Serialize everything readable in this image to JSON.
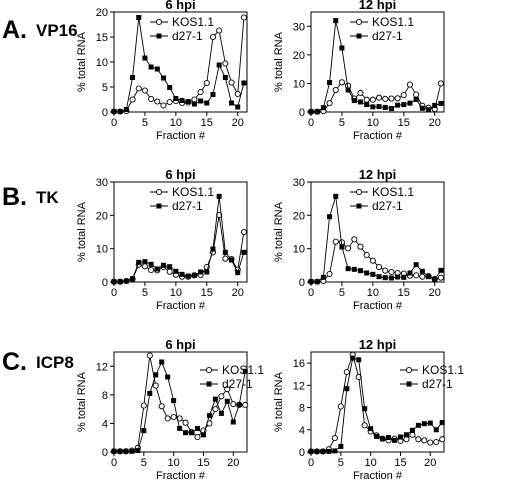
{
  "rows": [
    {
      "letter": "A.",
      "gene": "VP16"
    },
    {
      "letter": "B.",
      "gene": "TK"
    },
    {
      "letter": "C.",
      "gene": "ICP8"
    }
  ],
  "legend": {
    "series_a": "KOS1.1",
    "series_b": "d27-1"
  },
  "colors": {
    "axis": "#000000",
    "open_marker_fill": "#ffffff",
    "filled_marker_fill": "#000000"
  },
  "chart_data": [
    {
      "type": "line",
      "row": "A",
      "title": "6 hpi",
      "xlabel": "Fraction #",
      "ylabel": "% total RNA",
      "xlim": [
        0,
        21.5
      ],
      "ylim": [
        0,
        20
      ],
      "xticks": [
        0,
        5,
        10,
        15,
        20
      ],
      "yticks": [
        0,
        5,
        10,
        15,
        20
      ],
      "legend_position": "top-center",
      "x": [
        0,
        1,
        2,
        3,
        4,
        5,
        6,
        7,
        8,
        9,
        10,
        11,
        12,
        13,
        14,
        15,
        16,
        17,
        18,
        19,
        20,
        21
      ],
      "series": [
        {
          "name": "KOS1.1",
          "marker": "open-circle",
          "values": [
            0.1,
            0.1,
            0.2,
            2.5,
            4.7,
            4.3,
            2.6,
            2.1,
            1.3,
            2.0,
            2.2,
            1.8,
            1.9,
            2.5,
            4.0,
            5.8,
            15.0,
            16.3,
            9.7,
            5.9,
            3.6,
            18.9
          ]
        },
        {
          "name": "d27-1",
          "marker": "filled-square",
          "values": [
            0.1,
            0.1,
            0.5,
            6.9,
            18.9,
            10.8,
            9.0,
            8.6,
            6.8,
            4.9,
            2.7,
            2.3,
            2.1,
            1.6,
            2.2,
            1.8,
            3.5,
            9.4,
            6.9,
            1.8,
            1.0,
            5.8
          ]
        }
      ]
    },
    {
      "type": "line",
      "row": "A",
      "title": "12 hpi",
      "xlabel": "Fraction #",
      "ylabel": "",
      "xlim": [
        0,
        21.5
      ],
      "ylim": [
        0,
        35
      ],
      "xticks": [
        0,
        5,
        10,
        15,
        20
      ],
      "yticks": [
        0,
        10,
        20,
        30
      ],
      "legend_position": "top-center",
      "x": [
        0,
        1,
        2,
        3,
        4,
        5,
        6,
        7,
        8,
        9,
        10,
        11,
        12,
        13,
        14,
        15,
        16,
        17,
        18,
        19,
        20,
        21
      ],
      "series": [
        {
          "name": "KOS1.1",
          "marker": "open-circle",
          "values": [
            0.1,
            0.1,
            0.3,
            3.1,
            7.7,
            10.4,
            9.2,
            4.7,
            6.7,
            4.3,
            4.3,
            5.0,
            4.6,
            4.7,
            4.8,
            5.9,
            9.6,
            6.1,
            2.2,
            1.5,
            1.0,
            10.0
          ]
        },
        {
          "name": "d27-1",
          "marker": "filled-square",
          "values": [
            0.1,
            0.1,
            1.5,
            10.3,
            32.0,
            22.4,
            7.7,
            4.0,
            3.5,
            2.6,
            1.8,
            1.9,
            1.6,
            1.2,
            2.4,
            2.6,
            3.1,
            4.4,
            1.3,
            0.8,
            2.3,
            3.0
          ]
        }
      ]
    },
    {
      "type": "line",
      "row": "B",
      "title": "6 hpi",
      "xlabel": "Fraction #",
      "ylabel": "% total RNA",
      "xlim": [
        0,
        21.5
      ],
      "ylim": [
        0,
        30
      ],
      "xticks": [
        0,
        5,
        10,
        15,
        20
      ],
      "yticks": [
        0,
        10,
        20,
        30
      ],
      "legend_position": "top-center",
      "x": [
        0,
        1,
        2,
        3,
        4,
        5,
        6,
        7,
        8,
        9,
        10,
        11,
        12,
        13,
        14,
        15,
        16,
        17,
        18,
        19,
        20,
        21
      ],
      "series": [
        {
          "name": "KOS1.1",
          "marker": "open-circle",
          "values": [
            0.1,
            0.1,
            0.3,
            0.9,
            5.2,
            4.7,
            3.6,
            3.5,
            4.5,
            3.1,
            2.2,
            1.6,
            1.6,
            2.0,
            2.1,
            4.5,
            8.9,
            20.1,
            7.0,
            6.9,
            3.7,
            15.0
          ]
        },
        {
          "name": "d27-1",
          "marker": "filled-square",
          "values": [
            0.1,
            0.1,
            0.3,
            1.0,
            5.9,
            6.1,
            5.3,
            3.9,
            5.0,
            4.6,
            3.2,
            2.3,
            1.8,
            2.0,
            3.0,
            3.0,
            9.9,
            25.7,
            8.9,
            6.6,
            2.8,
            8.9
          ]
        }
      ]
    },
    {
      "type": "line",
      "row": "B",
      "title": "12 hpi",
      "xlabel": "Fraction #",
      "ylabel": "",
      "xlim": [
        0,
        21.5
      ],
      "ylim": [
        0,
        30
      ],
      "xticks": [
        0,
        5,
        10,
        15,
        20
      ],
      "yticks": [
        0,
        10,
        20,
        30
      ],
      "legend_position": "top-center",
      "x": [
        0,
        1,
        2,
        3,
        4,
        5,
        6,
        7,
        8,
        9,
        10,
        11,
        12,
        13,
        14,
        15,
        16,
        17,
        18,
        19,
        20,
        21
      ],
      "series": [
        {
          "name": "KOS1.1",
          "marker": "open-circle",
          "values": [
            0.1,
            0.1,
            0.3,
            2.4,
            12.1,
            11.9,
            10.1,
            12.8,
            10.6,
            8.1,
            6.4,
            4.5,
            3.4,
            3.0,
            2.7,
            2.5,
            1.9,
            2.0,
            1.6,
            1.8,
            0.9,
            1.3
          ]
        },
        {
          "name": "d27-1",
          "marker": "filled-square",
          "values": [
            0.1,
            0.1,
            1.4,
            19.6,
            25.7,
            10.5,
            4.0,
            3.8,
            3.4,
            2.7,
            2.3,
            1.6,
            1.3,
            1.2,
            1.5,
            1.4,
            2.7,
            5.2,
            3.2,
            1.6,
            0.8,
            3.5
          ]
        }
      ]
    },
    {
      "type": "line",
      "row": "C",
      "title": "6 hpi",
      "xlabel": "Fraction #",
      "ylabel": "% total RNA",
      "xlim": [
        0,
        22.3
      ],
      "ylim": [
        0,
        14
      ],
      "xticks": [
        0,
        5,
        10,
        15,
        20
      ],
      "yticks": [
        0,
        4,
        8,
        12
      ],
      "legend_position": "top-right",
      "x": [
        0,
        1,
        2,
        3,
        4,
        5,
        6,
        7,
        8,
        9,
        10,
        11,
        12,
        13,
        14,
        15,
        16,
        17,
        18,
        19,
        20,
        21,
        22
      ],
      "series": [
        {
          "name": "KOS1.1",
          "marker": "open-circle",
          "values": [
            0.1,
            0.1,
            0.1,
            0.2,
            0.6,
            6.5,
            13.5,
            9.3,
            6.4,
            4.7,
            4.9,
            4.7,
            4.1,
            2.8,
            2.1,
            3.0,
            4.0,
            6.0,
            7.8,
            8.8,
            6.7,
            6.6,
            6.6
          ]
        },
        {
          "name": "d27-1",
          "marker": "filled-square",
          "values": [
            0.1,
            0.1,
            0.1,
            0.1,
            0.2,
            3.0,
            8.2,
            10.8,
            12.6,
            10.5,
            7.2,
            3.3,
            2.7,
            2.7,
            3.3,
            2.4,
            5.1,
            7.4,
            5.4,
            7.1,
            4.2,
            6.6,
            11.3
          ]
        }
      ]
    },
    {
      "type": "line",
      "row": "C",
      "title": "12 hpi",
      "xlabel": "Fraction #",
      "ylabel": "",
      "xlim": [
        0,
        22.3
      ],
      "ylim": [
        0,
        18
      ],
      "xticks": [
        0,
        5,
        10,
        15,
        20
      ],
      "yticks": [
        0,
        4,
        8,
        12,
        16
      ],
      "legend_position": "top-right",
      "x": [
        0,
        1,
        2,
        3,
        4,
        5,
        6,
        7,
        8,
        9,
        10,
        11,
        12,
        13,
        14,
        15,
        16,
        17,
        18,
        19,
        20,
        21,
        22
      ],
      "series": [
        {
          "name": "KOS1.1",
          "marker": "open-circle",
          "values": [
            0.1,
            0.1,
            0.1,
            0.5,
            2.5,
            8.2,
            14.4,
            17.5,
            13.5,
            4.8,
            3.7,
            3.0,
            2.4,
            2.1,
            2.4,
            2.0,
            2.3,
            3.1,
            2.3,
            2.1,
            1.7,
            1.8,
            2.3
          ]
        },
        {
          "name": "d27-1",
          "marker": "filled-square",
          "values": [
            0.1,
            0.1,
            0.1,
            0.1,
            0.2,
            1.0,
            11.4,
            16.9,
            16.6,
            7.8,
            4.2,
            2.8,
            2.4,
            2.6,
            2.1,
            2.7,
            3.1,
            3.9,
            4.8,
            5.1,
            5.2,
            4.0,
            5.3
          ]
        }
      ]
    }
  ]
}
